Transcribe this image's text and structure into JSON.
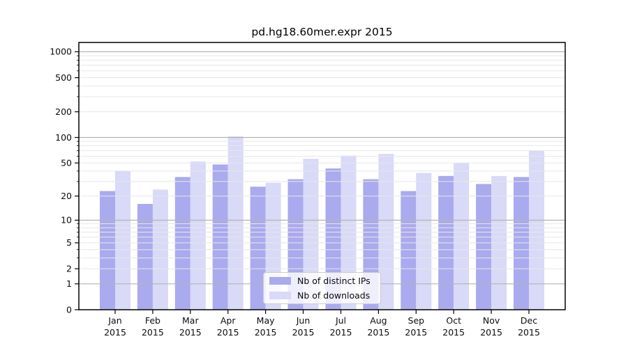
{
  "title": "pd.hg18.60mer.expr 2015",
  "chart_data": {
    "type": "bar",
    "title": "pd.hg18.60mer.expr 2015",
    "categories": [
      "Jan 2015",
      "Feb 2015",
      "Mar 2015",
      "Apr 2015",
      "May 2015",
      "Jun 2015",
      "Jul 2015",
      "Aug 2015",
      "Sep 2015",
      "Oct 2015",
      "Nov 2015",
      "Dec 2015"
    ],
    "month_labels": [
      "Jan",
      "Feb",
      "Mar",
      "Apr",
      "May",
      "Jun",
      "Jul",
      "Aug",
      "Sep",
      "Oct",
      "Nov",
      "Dec"
    ],
    "year_label": "2015",
    "series": [
      {
        "name": "Nb of distinct IPs",
        "color": "#aaaaee",
        "values": [
          23,
          16,
          34,
          48,
          26,
          32,
          43,
          32,
          23,
          35,
          28,
          34
        ]
      },
      {
        "name": "Nb of downloads",
        "color": "#d9d9f8",
        "values": [
          40,
          24,
          52,
          103,
          29,
          56,
          61,
          64,
          38,
          50,
          35,
          70
        ]
      }
    ],
    "yticks": [
      0,
      1,
      2,
      5,
      10,
      20,
      50,
      100,
      200,
      500,
      1000
    ],
    "y_major_gridlines": [
      1,
      10,
      100,
      1000
    ],
    "y_scale": "log10(value+1)",
    "ylim": [
      0,
      1300
    ],
    "xlabel": "",
    "ylabel": "",
    "grid": true,
    "legend_position": "lower center",
    "colors": {
      "bar_ips": "#aaaaee",
      "bar_downloads": "#d9d9f8",
      "major_grid": "#b3b3b3",
      "minor_grid": "#e7e7e7",
      "axis": "#000000",
      "tick_text": "#0c0c0c",
      "legend_border": "#cccccc"
    }
  }
}
